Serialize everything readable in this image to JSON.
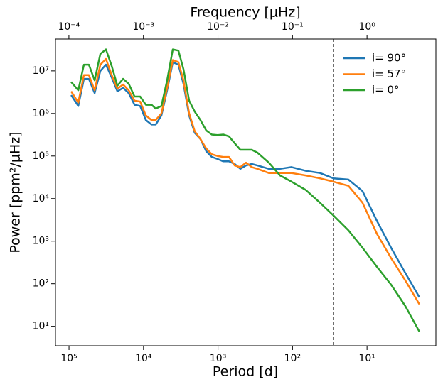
{
  "chart_data": {
    "type": "line",
    "xlabel": "Period [d]",
    "ylabel": "Power [ppm²/μHz]",
    "x2label": "Frequency [μHz]",
    "xscale": "log",
    "yscale": "log",
    "xlim": [
      152000,
      1.19
    ],
    "x2lim": [
      6.6e-05,
      8.4
    ],
    "ylim": [
      3.5,
      56000000
    ],
    "xticks": [
      {
        "value": 100000,
        "label": "10⁵"
      },
      {
        "value": 10000,
        "label": "10⁴"
      },
      {
        "value": 1000,
        "label": "10³"
      },
      {
        "value": 100,
        "label": "10²"
      },
      {
        "value": 10,
        "label": "10¹"
      }
    ],
    "x2ticks": [
      {
        "value": 0.0001,
        "label": "10⁻⁴"
      },
      {
        "value": 0.001,
        "label": "10⁻³"
      },
      {
        "value": 0.01,
        "label": "10⁻²"
      },
      {
        "value": 0.1,
        "label": "10⁻¹"
      },
      {
        "value": 1,
        "label": "10⁰"
      }
    ],
    "yticks": [
      {
        "value": 10,
        "label": "10¹"
      },
      {
        "value": 100,
        "label": "10²"
      },
      {
        "value": 1000,
        "label": "10³"
      },
      {
        "value": 10000,
        "label": "10⁴"
      },
      {
        "value": 100000,
        "label": "10⁵"
      },
      {
        "value": 1000000,
        "label": "10⁶"
      },
      {
        "value": 10000000,
        "label": "10⁷"
      }
    ],
    "vline": 28.2,
    "legend": "upper right",
    "x": [
      93600,
      75100,
      63100,
      54100,
      45300,
      38000,
      31900,
      26700,
      22400,
      18800,
      15800,
      13200,
      11100,
      9300,
      7800,
      6860,
      5750,
      4820,
      4050,
      3400,
      2910,
      2440,
      2050,
      1720,
      1440,
      1210,
      1010,
      849,
      713,
      598,
      501,
      421,
      353,
      296,
      208,
      147,
      103,
      66.5,
      42.8,
      28.2,
      17.8,
      11.5,
      7.38,
      4.75,
      3.07,
      1.98
    ],
    "series": [
      {
        "name": "i= 90°",
        "color": "#1f77b4",
        "values": [
          2700000,
          1500000,
          6500000,
          6500000,
          3000000,
          10000000,
          14000000,
          7000000,
          3300000,
          4000000,
          3000000,
          1600000,
          1500000,
          700000,
          550000,
          550000,
          900000,
          3500000,
          16000000,
          14000000,
          5000000,
          900000,
          350000,
          250000,
          130000,
          95000,
          85000,
          75000,
          75000,
          65000,
          50000,
          60000,
          65000,
          60000,
          50000,
          50000,
          55000,
          45000,
          40000,
          30000,
          28000,
          15000,
          3000,
          700,
          180,
          48
        ]
      },
      {
        "name": "i= 57°",
        "color": "#ff7f0e",
        "values": [
          3300000,
          1800000,
          8000000,
          8000000,
          3500000,
          14000000,
          19000000,
          8000000,
          3800000,
          4800000,
          3500000,
          2000000,
          1900000,
          900000,
          700000,
          700000,
          1000000,
          4000000,
          18000000,
          16000000,
          6000000,
          1000000,
          380000,
          250000,
          150000,
          110000,
          100000,
          95000,
          95000,
          60000,
          55000,
          70000,
          55000,
          50000,
          40000,
          40000,
          40000,
          35000,
          30000,
          25000,
          20000,
          8000,
          1500,
          400,
          120,
          33
        ]
      },
      {
        "name": "i= 0°",
        "color": "#2ca02c",
        "values": [
          5500000,
          3500000,
          14000000,
          14000000,
          6000000,
          25000000,
          32000000,
          13000000,
          4500000,
          6500000,
          5000000,
          2500000,
          2500000,
          1600000,
          1600000,
          1300000,
          1500000,
          6000000,
          32000000,
          30000000,
          11000000,
          2000000,
          1100000,
          700000,
          400000,
          320000,
          310000,
          320000,
          290000,
          200000,
          140000,
          140000,
          140000,
          120000,
          70000,
          35000,
          25000,
          16000,
          8000,
          4000,
          1800,
          700,
          250,
          95,
          30,
          7.5
        ]
      }
    ]
  }
}
